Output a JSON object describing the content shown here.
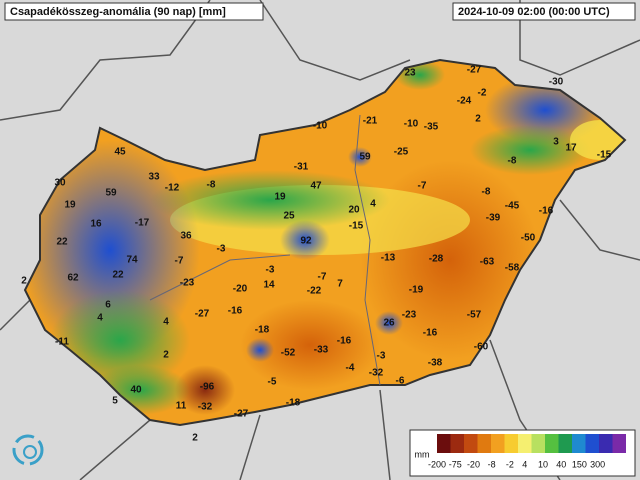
{
  "title": "Csapadékösszeg-anomália (90 nap) [mm]",
  "timestamp": "2024-10-09 02:00 (00:00 UTC)",
  "stations": [
    23,
    -27,
    -30,
    -24,
    -2,
    -21,
    -10,
    -35,
    2,
    -10,
    59,
    -25,
    3,
    17,
    -15,
    -8,
    45,
    -31,
    33,
    -12,
    -8,
    47,
    -7,
    -8,
    30,
    59,
    19,
    19,
    20,
    4,
    -45,
    -16,
    16,
    -17,
    25,
    -15,
    -39,
    36,
    92,
    -50,
    22,
    -3,
    74,
    -7,
    -13,
    -28,
    -63,
    -58,
    -3,
    -7,
    62,
    22,
    -23,
    14,
    -20,
    -22,
    7,
    -19,
    2,
    6,
    -16,
    4,
    -27,
    4,
    26,
    -23,
    -57,
    -18,
    -16,
    -11,
    -16,
    -60,
    2,
    -52,
    -33,
    -3,
    -38,
    -4,
    -32,
    -6,
    -5,
    40,
    -96,
    5,
    11,
    -32,
    -18,
    -27,
    2
  ],
  "legend": {
    "unit": "mm",
    "ticks": [
      -200,
      -75,
      -20,
      -8,
      -2,
      4,
      10,
      40,
      150,
      300
    ]
  }
}
